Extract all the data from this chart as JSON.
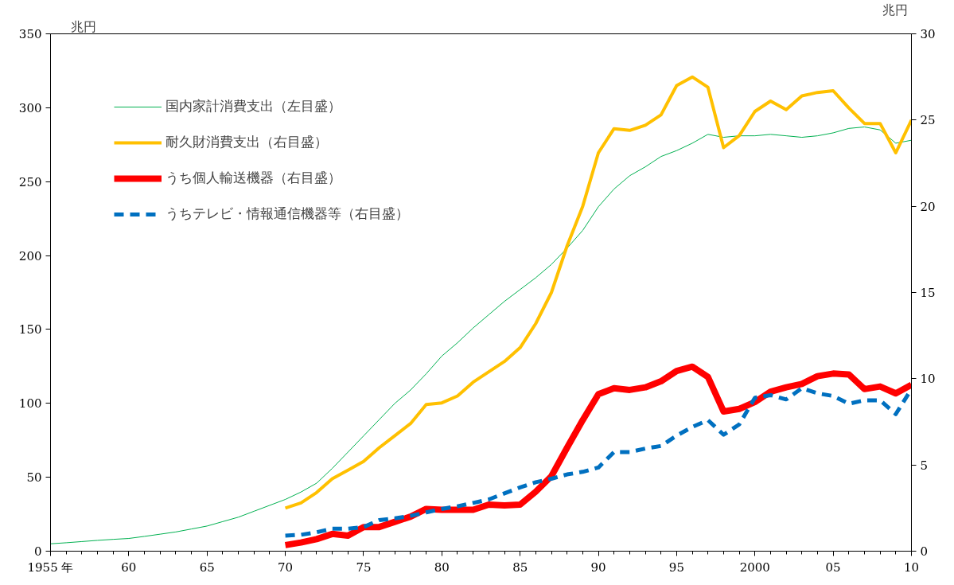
{
  "chart_data": {
    "type": "line",
    "xlabel": null,
    "ylabel": "兆円",
    "y2label": "兆円",
    "legend": "top left",
    "grid": false,
    "xlim": [
      1955,
      2010
    ],
    "xticks": [
      {
        "value": 1955,
        "label": "1955 年"
      },
      {
        "value": 1960,
        "label": "60"
      },
      {
        "value": 1965,
        "label": "65"
      },
      {
        "value": 1970,
        "label": "70"
      },
      {
        "value": 1975,
        "label": "75"
      },
      {
        "value": 1980,
        "label": "80"
      },
      {
        "value": 1985,
        "label": "85"
      },
      {
        "value": 1990,
        "label": "90"
      },
      {
        "value": 1995,
        "label": "95"
      },
      {
        "value": 2000,
        "label": "2000"
      },
      {
        "value": 2005,
        "label": "05"
      },
      {
        "value": 2010,
        "label": "10"
      }
    ],
    "ylim": [
      0,
      350
    ],
    "yticks": [
      0,
      50,
      100,
      150,
      200,
      250,
      300,
      350
    ],
    "y2lim": [
      0,
      30
    ],
    "y2ticks": [
      0,
      5,
      10,
      15,
      20,
      25,
      30
    ],
    "series": [
      {
        "name": "国内家計消費支出（左目盛）",
        "color": "#00b050",
        "line_style": "solid",
        "x": [
          1955,
          1956,
          1957,
          1958,
          1959,
          1960,
          1961,
          1962,
          1963,
          1964,
          1965,
          1966,
          1967,
          1968,
          1969,
          1970,
          1971,
          1972,
          1973,
          1974,
          1975,
          1976,
          1977,
          1978,
          1979,
          1980,
          1981,
          1982,
          1983,
          1984,
          1985,
          1986,
          1987,
          1988,
          1989,
          1990,
          1991,
          1992,
          1993,
          1994,
          1995,
          1996,
          1997,
          1998,
          1999,
          2000,
          2001,
          2002,
          2003,
          2004,
          2005,
          2006,
          2007,
          2008,
          2009,
          2010
        ],
        "values": [
          5,
          5.7,
          6.5,
          7.3,
          8,
          8.6,
          10,
          11.5,
          13,
          15,
          17,
          20,
          23,
          27,
          31,
          35,
          40,
          46,
          56,
          67,
          78,
          89,
          100,
          109,
          120,
          132,
          141,
          151,
          160,
          169,
          177,
          185,
          194,
          205,
          217,
          233,
          245,
          254,
          260,
          267,
          271,
          276,
          282,
          280,
          281,
          281,
          282,
          281,
          280,
          281,
          283,
          286,
          287,
          285,
          276,
          278
        ]
      },
      {
        "name": "耐久財消費支出（右目盛）",
        "color": "#ffc000",
        "line_style": "solid",
        "axis": "y2",
        "x": [
          1970,
          1971,
          1972,
          1973,
          1974,
          1975,
          1976,
          1977,
          1978,
          1979,
          1980,
          1981,
          1982,
          1983,
          1984,
          1985,
          1986,
          1987,
          1988,
          1989,
          1990,
          1991,
          1992,
          1993,
          1994,
          1995,
          1996,
          1997,
          1998,
          1999,
          2000,
          2001,
          2002,
          2003,
          2004,
          2005,
          2006,
          2007,
          2008,
          2009,
          2010
        ],
        "values": [
          2.5,
          2.8,
          3.4,
          4.2,
          4.7,
          5.2,
          6.0,
          6.7,
          7.4,
          8.5,
          8.6,
          9.0,
          9.8,
          10.4,
          11.0,
          11.8,
          13.2,
          15.0,
          17.7,
          20.0,
          23.1,
          24.5,
          24.4,
          24.7,
          25.3,
          27.0,
          27.5,
          26.9,
          23.4,
          24.1,
          25.5,
          26.1,
          25.6,
          26.4,
          26.6,
          26.7,
          25.7,
          24.8,
          24.8,
          23.1,
          25.0
        ]
      },
      {
        "name": "うち個人輸送機器（右目盛）",
        "color": "#ff0000",
        "line_style": "solid",
        "axis": "y2",
        "x": [
          1970,
          1971,
          1972,
          1973,
          1974,
          1975,
          1976,
          1977,
          1978,
          1979,
          1980,
          1981,
          1982,
          1983,
          1984,
          1985,
          1986,
          1987,
          1988,
          1989,
          1990,
          1991,
          1992,
          1993,
          1994,
          1995,
          1996,
          1997,
          1998,
          1999,
          2000,
          2001,
          2002,
          2003,
          2004,
          2005,
          2006,
          2007,
          2008,
          2009,
          2010
        ],
        "values": [
          0.35,
          0.5,
          0.7,
          1.0,
          0.9,
          1.4,
          1.4,
          1.7,
          2.0,
          2.45,
          2.4,
          2.4,
          2.4,
          2.7,
          2.65,
          2.7,
          3.45,
          4.35,
          6.0,
          7.6,
          9.1,
          9.45,
          9.35,
          9.5,
          9.85,
          10.45,
          10.7,
          10.1,
          8.1,
          8.25,
          8.65,
          9.25,
          9.5,
          9.7,
          10.15,
          10.3,
          10.25,
          9.4,
          9.55,
          9.15,
          9.65
        ]
      },
      {
        "name": "うちテレビ・情報通信機器等（右目盛）",
        "color": "#0070c0",
        "line_style": "dashed",
        "axis": "y2",
        "x": [
          1970,
          1971,
          1972,
          1973,
          1974,
          1975,
          1976,
          1977,
          1978,
          1979,
          1980,
          1981,
          1982,
          1983,
          1984,
          1985,
          1986,
          1987,
          1988,
          1989,
          1990,
          1991,
          1992,
          1993,
          1994,
          1995,
          1996,
          1997,
          1998,
          1999,
          2000,
          2001,
          2002,
          2003,
          2004,
          2005,
          2006,
          2007,
          2008,
          2009,
          2010
        ],
        "values": [
          0.9,
          0.95,
          1.1,
          1.3,
          1.3,
          1.4,
          1.8,
          1.9,
          2.05,
          2.25,
          2.45,
          2.6,
          2.8,
          3.0,
          3.35,
          3.7,
          4.0,
          4.2,
          4.45,
          4.6,
          4.85,
          5.75,
          5.75,
          5.95,
          6.1,
          6.7,
          7.2,
          7.6,
          6.75,
          7.35,
          8.9,
          9.05,
          8.8,
          9.45,
          9.15,
          9.0,
          8.55,
          8.75,
          8.75,
          7.95,
          9.4
        ]
      }
    ]
  }
}
